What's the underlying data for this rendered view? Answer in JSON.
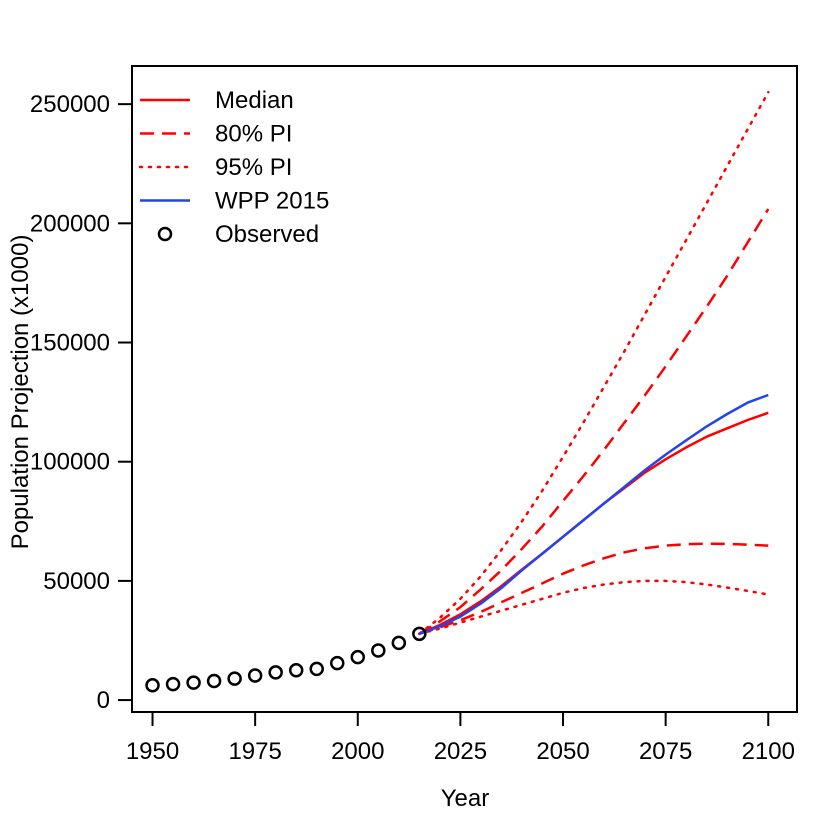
{
  "chart_data": {
    "type": "line",
    "title": "",
    "xlabel": "Year",
    "ylabel": "Population Projection (x1000)",
    "xlim": [
      1945,
      2107
    ],
    "ylim": [
      -5000,
      266000
    ],
    "x_ticks": [
      1950,
      1975,
      2000,
      2025,
      2050,
      2075,
      2100
    ],
    "y_ticks": [
      0,
      50000,
      100000,
      150000,
      200000,
      250000
    ],
    "x_tick_labels": [
      "1950",
      "1975",
      "2000",
      "2025",
      "2050",
      "2075",
      "2100"
    ],
    "y_tick_labels": [
      "0",
      "50000",
      "100000",
      "150000",
      "200000",
      "250000"
    ],
    "grid": false,
    "legend_position": "top-left",
    "legend": [
      {
        "label": "Median",
        "style": "solid",
        "color": "#ff0000",
        "marker": "none"
      },
      {
        "label": "80% PI",
        "style": "dashed",
        "color": "#ff0000",
        "marker": "none"
      },
      {
        "label": "95% PI",
        "style": "dotted",
        "color": "#ff0000",
        "marker": "none"
      },
      {
        "label": "WPP 2015",
        "style": "solid",
        "color": "#2244ee",
        "marker": "none"
      },
      {
        "label": "Observed",
        "style": "none",
        "color": "#000000",
        "marker": "circle"
      }
    ],
    "observed": {
      "name": "Observed",
      "x": [
        1950,
        1955,
        1960,
        1965,
        1970,
        1975,
        1980,
        1985,
        1990,
        1995,
        2000,
        2005,
        2010,
        2015
      ],
      "y": [
        6200,
        6700,
        7300,
        8000,
        9000,
        10300,
        11600,
        12500,
        13100,
        15500,
        18000,
        20800,
        24000,
        27800
      ]
    },
    "series": [
      {
        "name": "Median",
        "style": "solid",
        "color": "#ff0000",
        "x": [
          2015,
          2020,
          2025,
          2030,
          2035,
          2040,
          2045,
          2050,
          2055,
          2060,
          2065,
          2070,
          2075,
          2080,
          2085,
          2090,
          2095,
          2100
        ],
        "y": [
          27800,
          31500,
          36000,
          41500,
          47800,
          54800,
          61500,
          68500,
          75500,
          82500,
          89000,
          95500,
          101000,
          106000,
          110500,
          114000,
          117500,
          120500
        ]
      },
      {
        "name": "80% PI upper",
        "style": "dashed",
        "color": "#ff0000",
        "x": [
          2015,
          2020,
          2025,
          2030,
          2035,
          2040,
          2045,
          2050,
          2055,
          2060,
          2065,
          2070,
          2075,
          2080,
          2085,
          2090,
          2095,
          2100
        ],
        "y": [
          27800,
          33000,
          39000,
          46500,
          54500,
          63500,
          73000,
          83500,
          94000,
          105000,
          116500,
          128000,
          140000,
          152500,
          165000,
          178000,
          192000,
          206000
        ]
      },
      {
        "name": "80% PI lower",
        "style": "dashed",
        "color": "#ff0000",
        "x": [
          2015,
          2020,
          2025,
          2030,
          2035,
          2040,
          2045,
          2050,
          2055,
          2060,
          2065,
          2070,
          2075,
          2080,
          2085,
          2090,
          2095,
          2100
        ],
        "y": [
          27800,
          30500,
          33500,
          37000,
          41000,
          45000,
          49000,
          53000,
          56500,
          59500,
          62000,
          63700,
          64800,
          65400,
          65600,
          65500,
          65200,
          64800
        ]
      },
      {
        "name": "95% PI upper",
        "style": "dotted",
        "color": "#ff0000",
        "x": [
          2015,
          2020,
          2025,
          2030,
          2035,
          2040,
          2045,
          2050,
          2055,
          2060,
          2065,
          2070,
          2075,
          2080,
          2085,
          2090,
          2095,
          2100
        ],
        "y": [
          27800,
          34500,
          42500,
          52000,
          63000,
          75000,
          88000,
          102000,
          116500,
          131500,
          146500,
          162000,
          177500,
          193000,
          208500,
          224000,
          239500,
          255000
        ]
      },
      {
        "name": "95% PI lower",
        "style": "dotted",
        "color": "#ff0000",
        "x": [
          2015,
          2020,
          2025,
          2030,
          2035,
          2040,
          2045,
          2050,
          2055,
          2060,
          2065,
          2070,
          2075,
          2080,
          2085,
          2090,
          2095,
          2100
        ],
        "y": [
          27800,
          30000,
          32500,
          35000,
          37500,
          40000,
          42500,
          45000,
          47000,
          48500,
          49500,
          50000,
          50000,
          49500,
          48500,
          47200,
          45800,
          44300
        ]
      },
      {
        "name": "WPP 2015",
        "style": "solid",
        "color": "#2244ee",
        "x": [
          2015,
          2020,
          2025,
          2030,
          2035,
          2040,
          2045,
          2050,
          2055,
          2060,
          2065,
          2070,
          2075,
          2080,
          2085,
          2090,
          2095,
          2100
        ],
        "y": [
          27800,
          31000,
          35000,
          40500,
          47000,
          54500,
          61500,
          68500,
          75500,
          82500,
          89500,
          96500,
          103000,
          109000,
          114800,
          120000,
          124800,
          128000
        ]
      }
    ]
  }
}
